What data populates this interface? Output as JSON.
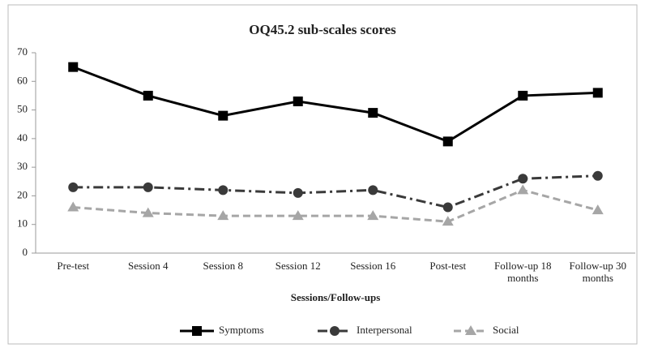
{
  "chart_data": {
    "type": "line",
    "title": "OQ45.2 sub-scales scores",
    "x_label": "Sessions/Follow-ups",
    "categories": [
      "Pre-test",
      "Session 4",
      "Session 8",
      "Session 12",
      "Session 16",
      "Post-test",
      "Follow-up 18 months",
      "Follow-up 30 months"
    ],
    "series": [
      {
        "name": "Symptoms",
        "color": "#000000",
        "dash": "solid",
        "marker": "square",
        "values": [
          65,
          55,
          48,
          53,
          49,
          39,
          55,
          56
        ]
      },
      {
        "name": "Interpersonal",
        "color": "#3a3a3a",
        "dash": "dashdot",
        "marker": "circle",
        "values": [
          23,
          23,
          22,
          21,
          22,
          16,
          26,
          27
        ]
      },
      {
        "name": "Social",
        "color": "#a6a6a6",
        "dash": "dashed",
        "marker": "triangle",
        "values": [
          16,
          14,
          13,
          13,
          13,
          11,
          22,
          15
        ]
      }
    ],
    "ylim": [
      0,
      70
    ],
    "yticks": [
      0,
      10,
      20,
      30,
      40,
      50,
      60,
      70
    ],
    "grid": false,
    "legend": "bottom"
  }
}
